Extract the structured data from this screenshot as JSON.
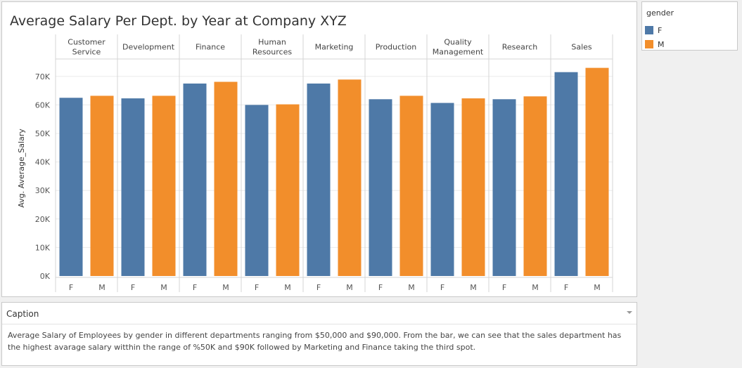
{
  "chart_data": {
    "type": "bar",
    "title": "Average Salary Per Dept. by Year at Company XYZ",
    "ylabel": "Avg. Average_Salary",
    "xlabel": "",
    "ylim": [
      0,
      75000
    ],
    "yticks": [
      0,
      10000,
      20000,
      30000,
      40000,
      50000,
      60000,
      70000
    ],
    "ytick_labels": [
      "0K",
      "10K",
      "20K",
      "30K",
      "40K",
      "50K",
      "60K",
      "70K"
    ],
    "gridlines": true,
    "categories": [
      [
        "Customer",
        "Service"
      ],
      [
        "Development"
      ],
      [
        "Finance"
      ],
      [
        "Human",
        "Resources"
      ],
      [
        "Marketing"
      ],
      [
        "Production"
      ],
      [
        "Quality",
        "Management"
      ],
      [
        "Research"
      ],
      [
        "Sales"
      ]
    ],
    "sub_categories": [
      "F",
      "M"
    ],
    "series": [
      {
        "name": "F",
        "color": "#4e79a7",
        "values": [
          62500,
          62300,
          67500,
          60000,
          67500,
          62000,
          60700,
          62000,
          71500
        ]
      },
      {
        "name": "M",
        "color": "#f28e2b",
        "values": [
          63200,
          63200,
          68100,
          60200,
          68900,
          63200,
          62300,
          63000,
          73000
        ]
      }
    ]
  },
  "legend": {
    "title": "gender",
    "placement": "top-right",
    "items": [
      {
        "label": "F",
        "color": "#4e79a7"
      },
      {
        "label": "M",
        "color": "#f28e2b"
      }
    ]
  },
  "caption": {
    "header": "Caption",
    "text": "Average Salary of Employees by gender in different departments ranging from $50,000 and $90,000. From the bar, we can see that the sales department has the highest avarage salary witthin the range of %50K and $90K followed by Marketing and Finance taking the third spot."
  }
}
